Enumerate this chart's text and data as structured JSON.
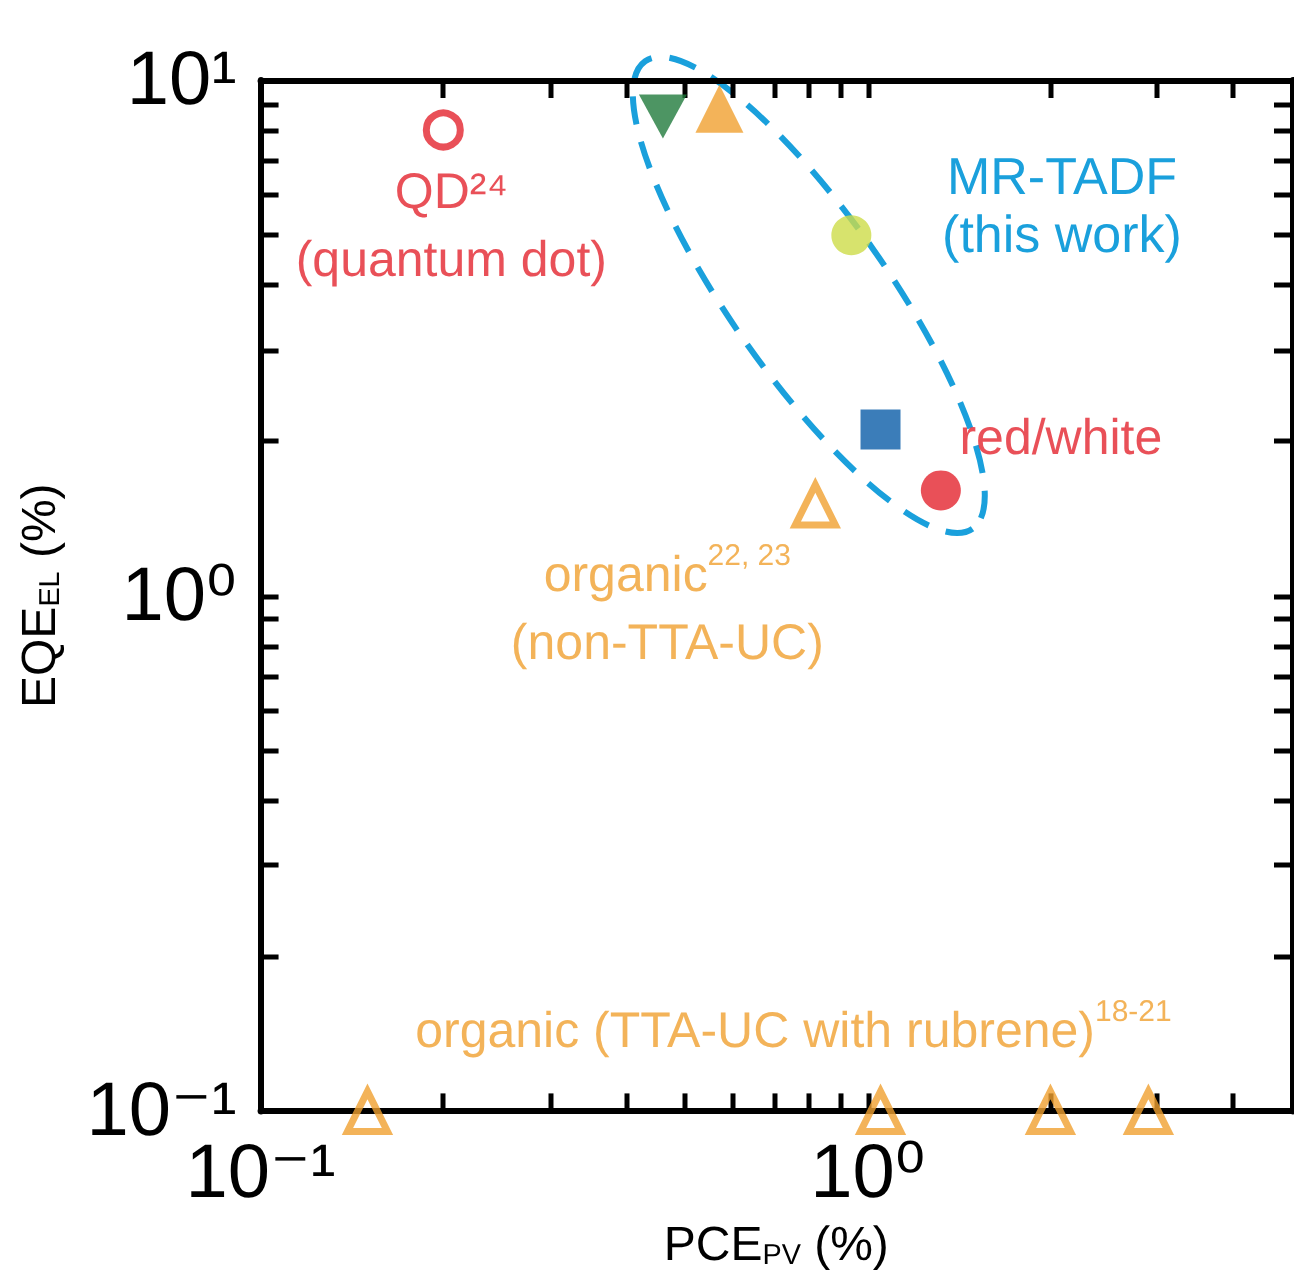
{
  "chart_data": {
    "type": "scatter",
    "xlabel": "PCE$_{PV}$ (%)",
    "ylabel": "EQE$_{EL}$ (%)",
    "log": "xy",
    "grid": false,
    "xlim": [
      0.1,
      5
    ],
    "ylim": [
      0.1,
      10
    ],
    "xticks": [
      {
        "value": 0.1,
        "label": "10⁻¹"
      },
      {
        "value": 0.2,
        "label": null
      },
      {
        "value": 0.3,
        "label": null
      },
      {
        "value": 0.4,
        "label": null
      },
      {
        "value": 0.5,
        "label": null
      },
      {
        "value": 0.6,
        "label": null
      },
      {
        "value": 0.7,
        "label": null
      },
      {
        "value": 0.8,
        "label": null
      },
      {
        "value": 0.9,
        "label": null
      },
      {
        "value": 1,
        "label": "10⁰"
      },
      {
        "value": 2,
        "label": null
      },
      {
        "value": 3,
        "label": null
      },
      {
        "value": 4,
        "label": null
      }
    ],
    "yticks": [
      {
        "value": 0.1,
        "label": "10⁻¹"
      },
      {
        "value": 0.2,
        "label": null
      },
      {
        "value": 0.3,
        "label": null
      },
      {
        "value": 0.4,
        "label": null
      },
      {
        "value": 0.5,
        "label": null
      },
      {
        "value": 0.6,
        "label": null
      },
      {
        "value": 0.7,
        "label": null
      },
      {
        "value": 0.8,
        "label": null
      },
      {
        "value": 0.9,
        "label": null
      },
      {
        "value": 1,
        "label": "10⁰"
      },
      {
        "value": 2,
        "label": null
      },
      {
        "value": 3,
        "label": null
      },
      {
        "value": 4,
        "label": null
      },
      {
        "value": 5,
        "label": null
      },
      {
        "value": 6,
        "label": null
      },
      {
        "value": 7,
        "label": null
      },
      {
        "value": 8,
        "label": null
      },
      {
        "value": 9,
        "label": null
      },
      {
        "value": 10,
        "label": "10¹"
      }
    ],
    "series": [
      {
        "name": "QD²⁴\n(quantum dot)",
        "color": "#e3242e",
        "marker": "circle-open",
        "x": [
          0.2
        ],
        "values": [
          8
        ]
      },
      {
        "color": "#217a3c",
        "marker": "triangle-down",
        "x": [
          0.46
        ],
        "values": [
          8.5
        ]
      },
      {
        "color": "#f0a030",
        "marker": "triangle",
        "x": [
          0.57
        ],
        "values": [
          8.8
        ]
      },
      {
        "color": "#cddc48",
        "marker": "circle",
        "x": [
          0.94
        ],
        "values": [
          5
        ]
      },
      {
        "color": "#0a5ca8",
        "marker": "square",
        "x": [
          1.05
        ],
        "values": [
          2.1
        ]
      },
      {
        "name": "red/white",
        "color": "#e3242e",
        "marker": "circle",
        "x": [
          1.32
        ],
        "values": [
          1.6
        ]
      },
      {
        "name": "organic$^{22, 23}$\n(non-TTA-UC)",
        "color": "#f0a030",
        "marker": "triangle-open",
        "x": [
          0.82
        ],
        "values": [
          1.5
        ]
      },
      {
        "name": "organic (TTA-UC with rubrene)$^{18-21}$",
        "color": "#f0a030",
        "marker": "triangle-open",
        "x": [
          0.15,
          1.05,
          2.0,
          2.9
        ],
        "values": [
          0.1,
          0.1,
          0.1,
          0.1
        ]
      }
    ],
    "annotations": [
      "MR-TADF",
      "(this work)"
    ]
  }
}
